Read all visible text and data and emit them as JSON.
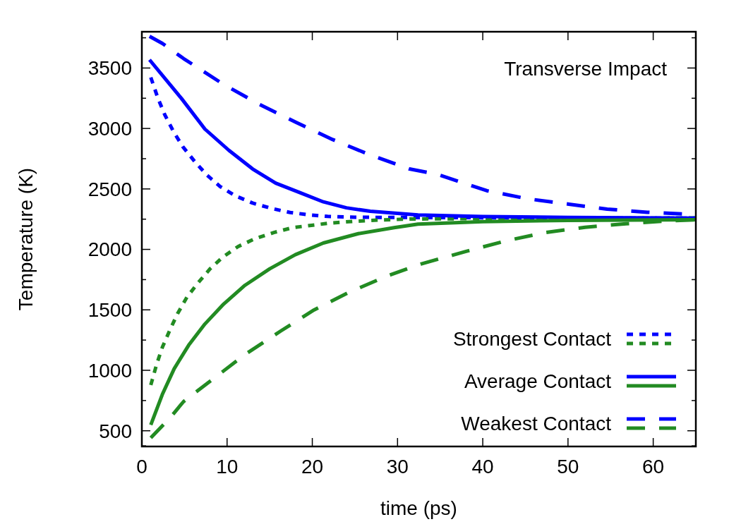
{
  "chart_data": {
    "type": "line",
    "title": "Transverse Impact",
    "xlabel": "time (ps)",
    "ylabel": "Temperature (K)",
    "xlim": [
      0,
      65
    ],
    "xticks": [
      0,
      10,
      20,
      30,
      40,
      50,
      60
    ],
    "ylim": [
      370,
      3800
    ],
    "yticks": [
      {
        "value": 375,
        "label": null
      },
      500,
      {
        "value": 750,
        "label": null
      },
      1000,
      {
        "value": 1250,
        "label": null
      },
      1500,
      {
        "value": 1750,
        "label": null
      },
      2000,
      {
        "value": 2250,
        "label": null
      },
      2500,
      {
        "value": 2750,
        "label": null
      },
      3000,
      {
        "value": 3250,
        "label": null
      },
      3500,
      {
        "value": 3750,
        "label": null
      }
    ],
    "grid": false,
    "legend": "bottom right",
    "marker": "none",
    "series": [
      {
        "name": "Strongest Contact",
        "color": "#0000ff",
        "line_style": "dotted",
        "x": [
          1.05,
          1.9,
          2.7,
          3.7,
          4.8,
          6.2,
          7.6,
          9.2,
          11,
          13,
          15.2,
          17.4,
          19.6,
          21.8,
          25,
          30,
          40,
          50,
          65
        ],
        "values": [
          3422,
          3248,
          3112,
          2976,
          2850,
          2727,
          2617,
          2519,
          2442,
          2383,
          2339,
          2305,
          2286,
          2273,
          2266,
          2264,
          2262,
          2260,
          2258
        ]
      },
      {
        "color": "#228b22",
        "line_style": "dotted",
        "x": [
          1.05,
          1.75,
          2.4,
          3.3,
          4.2,
          5.3,
          6.6,
          8,
          9.5,
          11.3,
          13.2,
          15.5,
          17.7,
          19.9,
          22.1,
          24.9,
          28.2,
          31.5,
          40,
          50,
          65
        ],
        "values": [
          878,
          1053,
          1189,
          1335,
          1470,
          1606,
          1723,
          1839,
          1936,
          2024,
          2086,
          2140,
          2180,
          2199,
          2218,
          2232,
          2244,
          2251,
          2255,
          2257,
          2260
        ]
      },
      {
        "name": "Average Contact",
        "color": "#0000ff",
        "line_style": "solid",
        "x": [
          0.9,
          4.65,
          7.4,
          10.2,
          13,
          15.7,
          18.5,
          21.3,
          24,
          26.8,
          32.4,
          40,
          50,
          65
        ],
        "values": [
          3568,
          3248,
          2995,
          2820,
          2665,
          2548,
          2471,
          2393,
          2344,
          2315,
          2285,
          2272,
          2265,
          2258
        ]
      },
      {
        "color": "#228b22",
        "line_style": "solid",
        "x": [
          1.05,
          2.4,
          3.8,
          5.5,
          7.4,
          9.6,
          12.1,
          15,
          18,
          21.3,
          25.4,
          29.6,
          32.4,
          40,
          50,
          65
        ],
        "values": [
          548,
          800,
          1014,
          1208,
          1383,
          1548,
          1703,
          1839,
          1956,
          2053,
          2130,
          2180,
          2209,
          2230,
          2240,
          2245
        ]
      },
      {
        "name": "Weakest Contact",
        "color": "#0000ff",
        "line_style": "dashed",
        "x": [
          0.9,
          2.4,
          4.9,
          9.6,
          13.8,
          18.1,
          22.4,
          26.8,
          31.4,
          34.7,
          40.5,
          45.3,
          50.1,
          54.6,
          59.3,
          65
        ],
        "values": [
          3762,
          3704,
          3578,
          3364,
          3199,
          3050,
          2908,
          2781,
          2665,
          2620,
          2485,
          2418,
          2374,
          2333,
          2307,
          2288
        ]
      },
      {
        "color": "#228b22",
        "line_style": "dashed",
        "x": [
          1.05,
          3.3,
          4.9,
          8.5,
          12.1,
          16.3,
          20.2,
          24.3,
          28.8,
          32.8,
          37.9,
          42.7,
          47.2,
          52,
          56.8,
          61.6,
          65
        ],
        "values": [
          441,
          606,
          742,
          936,
          1130,
          1325,
          1499,
          1645,
          1781,
          1880,
          1981,
          2070,
          2138,
          2183,
          2212,
          2235,
          2244
        ]
      }
    ]
  }
}
